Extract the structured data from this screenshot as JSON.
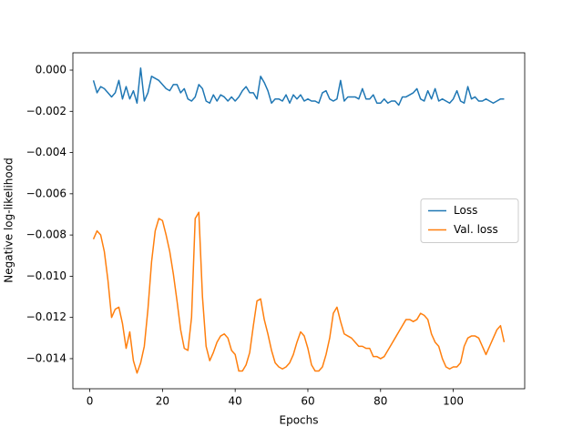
{
  "chart_data": {
    "type": "line",
    "xlabel": "Epochs",
    "ylabel": "Negative log-likelihood",
    "x": [
      1,
      2,
      3,
      4,
      5,
      6,
      7,
      8,
      9,
      10,
      11,
      12,
      13,
      14,
      15,
      16,
      17,
      18,
      19,
      20,
      21,
      22,
      23,
      24,
      25,
      26,
      27,
      28,
      29,
      30,
      31,
      32,
      33,
      34,
      35,
      36,
      37,
      38,
      39,
      40,
      41,
      42,
      43,
      44,
      45,
      46,
      47,
      48,
      49,
      50,
      51,
      52,
      53,
      54,
      55,
      56,
      57,
      58,
      59,
      60,
      61,
      62,
      63,
      64,
      65,
      66,
      67,
      68,
      69,
      70,
      71,
      72,
      73,
      74,
      75,
      76,
      77,
      78,
      79,
      80,
      81,
      82,
      83,
      84,
      85,
      86,
      87,
      88,
      89,
      90,
      91,
      92,
      93,
      94,
      95,
      96,
      97,
      98,
      99,
      100,
      101,
      102,
      103,
      104,
      105,
      106,
      107,
      108,
      109,
      110,
      111,
      112,
      113,
      114
    ],
    "series": [
      {
        "name": "Loss",
        "color": "#1f77b4",
        "values": [
          -0.0005,
          -0.0011,
          -0.0008,
          -0.0009,
          -0.0011,
          -0.0013,
          -0.0011,
          -0.0005,
          -0.0014,
          -0.0008,
          -0.0014,
          -0.001,
          -0.0016,
          0.0001,
          -0.0015,
          -0.0011,
          -0.0003,
          -0.0004,
          -0.0005,
          -0.0007,
          -0.0009,
          -0.001,
          -0.0007,
          -0.0007,
          -0.0011,
          -0.0009,
          -0.0014,
          -0.0015,
          -0.0013,
          -0.0007,
          -0.0009,
          -0.0015,
          -0.0016,
          -0.0012,
          -0.0015,
          -0.0012,
          -0.0013,
          -0.0015,
          -0.0013,
          -0.0015,
          -0.0013,
          -0.001,
          -0.0008,
          -0.0011,
          -0.0011,
          -0.0014,
          -0.0003,
          -0.0006,
          -0.001,
          -0.0016,
          -0.0014,
          -0.0014,
          -0.0015,
          -0.0012,
          -0.0016,
          -0.0012,
          -0.0014,
          -0.0012,
          -0.0015,
          -0.0014,
          -0.0015,
          -0.0015,
          -0.0016,
          -0.0011,
          -0.001,
          -0.0014,
          -0.0015,
          -0.0014,
          -0.0005,
          -0.0015,
          -0.0013,
          -0.0013,
          -0.0013,
          -0.0014,
          -0.0009,
          -0.0014,
          -0.0014,
          -0.0012,
          -0.0016,
          -0.0016,
          -0.0014,
          -0.0016,
          -0.0015,
          -0.0015,
          -0.0017,
          -0.0013,
          -0.0013,
          -0.0012,
          -0.0011,
          -0.0009,
          -0.0014,
          -0.0015,
          -0.001,
          -0.0014,
          -0.0009,
          -0.0015,
          -0.0014,
          -0.0015,
          -0.0016,
          -0.0014,
          -0.001,
          -0.0015,
          -0.0016,
          -0.0008,
          -0.0014,
          -0.0013,
          -0.0015,
          -0.0015,
          -0.0014,
          -0.0015,
          -0.0016,
          -0.0015,
          -0.0014,
          -0.0014
        ]
      },
      {
        "name": "Val. loss",
        "color": "#ff7f0e",
        "values": [
          -0.0082,
          -0.0078,
          -0.008,
          -0.0088,
          -0.0102,
          -0.012,
          -0.0116,
          -0.0115,
          -0.0123,
          -0.0135,
          -0.0127,
          -0.0141,
          -0.0147,
          -0.0142,
          -0.0134,
          -0.0116,
          -0.0093,
          -0.0078,
          -0.0072,
          -0.0073,
          -0.008,
          -0.0088,
          -0.0099,
          -0.0112,
          -0.0126,
          -0.0135,
          -0.0136,
          -0.012,
          -0.0072,
          -0.0069,
          -0.011,
          -0.0134,
          -0.0141,
          -0.0137,
          -0.0132,
          -0.0129,
          -0.0128,
          -0.013,
          -0.0136,
          -0.0138,
          -0.0146,
          -0.0146,
          -0.0143,
          -0.0137,
          -0.0124,
          -0.0112,
          -0.0111,
          -0.0121,
          -0.0128,
          -0.0136,
          -0.0142,
          -0.0144,
          -0.0145,
          -0.0144,
          -0.0142,
          -0.0138,
          -0.0132,
          -0.0127,
          -0.0129,
          -0.0135,
          -0.0143,
          -0.0146,
          -0.0146,
          -0.0144,
          -0.0138,
          -0.013,
          -0.0118,
          -0.0115,
          -0.0122,
          -0.0128,
          -0.0129,
          -0.013,
          -0.0132,
          -0.0134,
          -0.0134,
          -0.0135,
          -0.0135,
          -0.0139,
          -0.0139,
          -0.014,
          -0.0139,
          -0.0136,
          -0.0133,
          -0.013,
          -0.0127,
          -0.0124,
          -0.0121,
          -0.0121,
          -0.0122,
          -0.0121,
          -0.0118,
          -0.0119,
          -0.0121,
          -0.0128,
          -0.0132,
          -0.0134,
          -0.014,
          -0.0144,
          -0.0145,
          -0.0144,
          -0.0144,
          -0.0142,
          -0.0134,
          -0.013,
          -0.0129,
          -0.0129,
          -0.013,
          -0.0134,
          -0.0138,
          -0.0134,
          -0.013,
          -0.0126,
          -0.0124,
          -0.0132
        ]
      }
    ],
    "xlim": [
      -4.65,
      119.65
    ],
    "ylim": [
      -0.01546,
      0.00084
    ],
    "xticks": [
      0,
      20,
      40,
      60,
      80,
      100
    ],
    "yticks": [
      {
        "value": -0.014,
        "label": "−0.014"
      },
      {
        "value": -0.012,
        "label": "−0.012"
      },
      {
        "value": -0.01,
        "label": "−0.010"
      },
      {
        "value": -0.008,
        "label": "−0.008"
      },
      {
        "value": -0.006,
        "label": "−0.006"
      },
      {
        "value": -0.004,
        "label": "−0.004"
      },
      {
        "value": -0.002,
        "label": "−0.002"
      },
      {
        "value": 0,
        "label": "0.000"
      }
    ],
    "grid": false,
    "legend": "center right"
  }
}
